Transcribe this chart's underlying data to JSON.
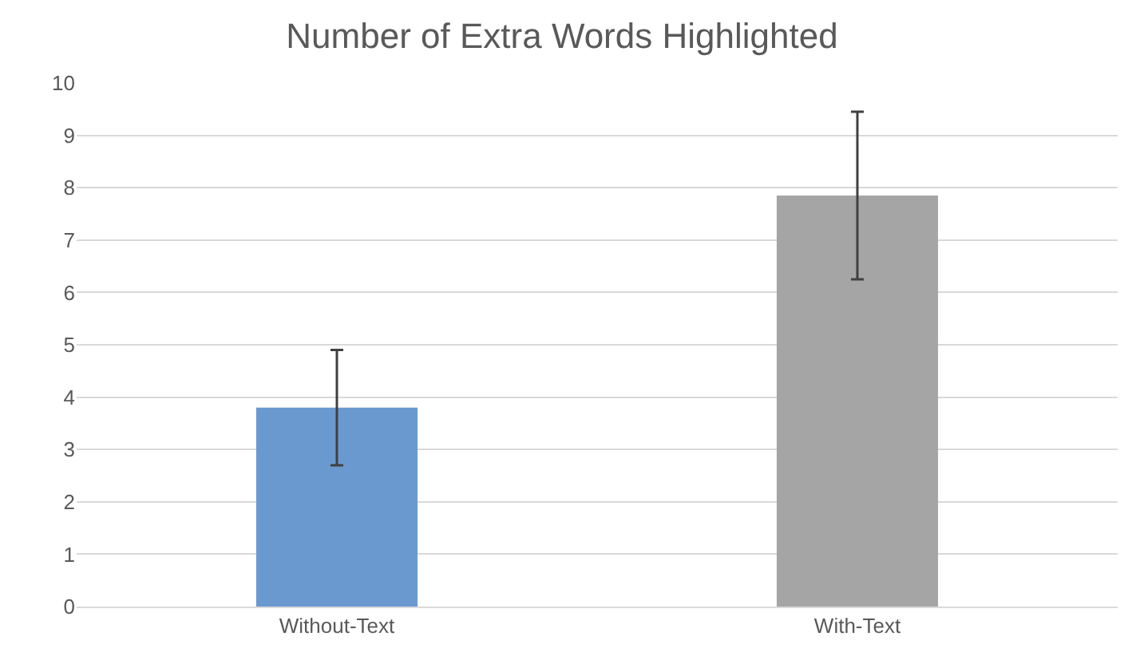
{
  "chart_data": {
    "type": "bar",
    "title": "Number of Extra Words Highlighted",
    "categories": [
      "Without-Text",
      "With-Text"
    ],
    "values": [
      3.8,
      7.85
    ],
    "errors": [
      1.1,
      1.6
    ],
    "colors": [
      "#6a99d0",
      "#a5a5a5"
    ],
    "ylim": [
      0,
      10
    ],
    "yticks": [
      0,
      1,
      2,
      3,
      4,
      5,
      6,
      7,
      8,
      9,
      10
    ],
    "grid": "y"
  }
}
